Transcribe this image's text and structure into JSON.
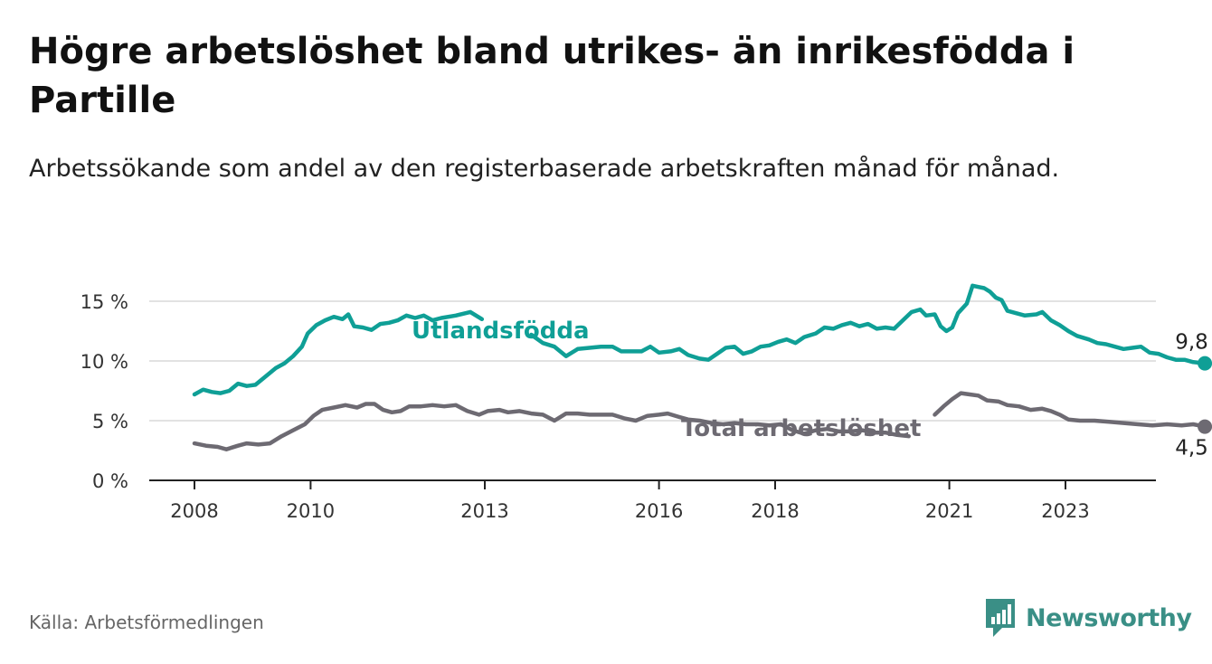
{
  "title": "Högre arbetslöshet bland utrikes- än inrikesfödda i Partille",
  "subtitle": "Arbetssökande som andel av den registerbaserade arbetskraften månad för månad.",
  "source": "Källa: Arbetsförmedlingen",
  "brand": "Newsworthy",
  "colors": {
    "foreign": "#0f9f96",
    "total": "#6d6a72",
    "brand": "#3a8f86"
  },
  "chart_data": {
    "type": "line",
    "title": "Högre arbetslöshet bland utrikes- än inrikesfödda i Partille",
    "xlabel": "",
    "ylabel": "",
    "ylim": [
      0,
      15
    ],
    "xlim": [
      2008,
      2024
    ],
    "grid": true,
    "y_ticks": [
      0,
      5,
      10,
      15
    ],
    "y_tick_labels": [
      "0 %",
      "5 %",
      "10 %",
      "15 %"
    ],
    "x_ticks": [
      2008,
      2010,
      2013,
      2016,
      2018,
      2021,
      2023
    ],
    "x_tick_labels": [
      "2008",
      "2010",
      "2013",
      "2016",
      "2018",
      "2021",
      "2023"
    ],
    "series": [
      {
        "name": "Utlandsfödda",
        "color": "#0f9f96",
        "end_label": "9,8 %",
        "points": [
          [
            2008.0,
            7.2
          ],
          [
            2008.15,
            7.6
          ],
          [
            2008.3,
            7.4
          ],
          [
            2008.45,
            7.3
          ],
          [
            2008.6,
            7.5
          ],
          [
            2008.75,
            8.1
          ],
          [
            2008.9,
            7.9
          ],
          [
            2009.05,
            8.0
          ],
          [
            2009.2,
            8.6
          ],
          [
            2009.4,
            9.4
          ],
          [
            2009.55,
            9.8
          ],
          [
            2009.7,
            10.4
          ],
          [
            2009.85,
            11.2
          ],
          [
            2009.95,
            12.3
          ],
          [
            2010.1,
            13.0
          ],
          [
            2010.25,
            13.4
          ],
          [
            2010.4,
            13.7
          ],
          [
            2010.55,
            13.5
          ],
          [
            2010.65,
            13.9
          ],
          [
            2010.75,
            12.9
          ],
          [
            2010.9,
            12.8
          ],
          [
            2011.05,
            12.6
          ],
          [
            2011.2,
            13.1
          ],
          [
            2011.35,
            13.2
          ],
          [
            2011.5,
            13.4
          ],
          [
            2011.65,
            13.8
          ],
          [
            2011.8,
            13.6
          ],
          [
            2011.95,
            13.8
          ],
          [
            2012.1,
            13.4
          ],
          [
            2012.25,
            13.6
          ],
          [
            2012.5,
            13.8
          ],
          [
            2012.75,
            14.1
          ],
          [
            2012.95,
            13.5
          ],
          [
            2013.8,
            12.2
          ],
          [
            2014.0,
            11.5
          ],
          [
            2014.2,
            11.2
          ],
          [
            2014.4,
            10.4
          ],
          [
            2014.6,
            11.0
          ],
          [
            2014.8,
            11.1
          ],
          [
            2015.0,
            11.2
          ],
          [
            2015.2,
            11.2
          ],
          [
            2015.35,
            10.8
          ],
          [
            2015.5,
            10.8
          ],
          [
            2015.7,
            10.8
          ],
          [
            2015.85,
            11.2
          ],
          [
            2016.0,
            10.7
          ],
          [
            2016.2,
            10.8
          ],
          [
            2016.35,
            11.0
          ],
          [
            2016.5,
            10.5
          ],
          [
            2016.7,
            10.2
          ],
          [
            2016.85,
            10.1
          ],
          [
            2017.0,
            10.6
          ],
          [
            2017.15,
            11.1
          ],
          [
            2017.3,
            11.2
          ],
          [
            2017.45,
            10.6
          ],
          [
            2017.6,
            10.8
          ],
          [
            2017.75,
            11.2
          ],
          [
            2017.9,
            11.3
          ],
          [
            2018.05,
            11.6
          ],
          [
            2018.2,
            11.8
          ],
          [
            2018.35,
            11.5
          ],
          [
            2018.5,
            12.0
          ],
          [
            2018.7,
            12.3
          ],
          [
            2018.85,
            12.8
          ],
          [
            2019.0,
            12.7
          ],
          [
            2019.15,
            13.0
          ],
          [
            2019.3,
            13.2
          ],
          [
            2019.45,
            12.9
          ],
          [
            2019.6,
            13.1
          ],
          [
            2019.75,
            12.7
          ],
          [
            2019.9,
            12.8
          ],
          [
            2020.05,
            12.7
          ],
          [
            2020.2,
            13.4
          ],
          [
            2020.35,
            14.1
          ],
          [
            2020.5,
            14.3
          ],
          [
            2020.6,
            13.8
          ],
          [
            2020.75,
            13.9
          ],
          [
            2020.85,
            12.9
          ],
          [
            2020.95,
            12.5
          ],
          [
            2021.05,
            12.8
          ],
          [
            2021.15,
            14.0
          ],
          [
            2021.3,
            14.8
          ],
          [
            2021.4,
            16.3
          ],
          [
            2021.5,
            16.2
          ],
          [
            2021.6,
            16.1
          ],
          [
            2021.7,
            15.8
          ],
          [
            2021.8,
            15.3
          ],
          [
            2021.9,
            15.1
          ],
          [
            2022.0,
            14.2
          ],
          [
            2022.15,
            14.0
          ],
          [
            2022.3,
            13.8
          ],
          [
            2022.5,
            13.9
          ],
          [
            2022.6,
            14.1
          ],
          [
            2022.75,
            13.4
          ],
          [
            2022.9,
            13.0
          ],
          [
            2023.05,
            12.5
          ],
          [
            2023.2,
            12.1
          ],
          [
            2023.4,
            11.8
          ],
          [
            2023.55,
            11.5
          ],
          [
            2023.7,
            11.4
          ],
          [
            2023.85,
            11.2
          ],
          [
            2024.0,
            11.0
          ],
          [
            2024.15,
            11.1
          ],
          [
            2024.3,
            11.2
          ],
          [
            2024.45,
            10.7
          ],
          [
            2024.6,
            10.6
          ],
          [
            2024.75,
            10.3
          ],
          [
            2024.9,
            10.1
          ],
          [
            2025.05,
            10.1
          ],
          [
            2025.2,
            9.9
          ],
          [
            2025.4,
            9.8
          ]
        ]
      },
      {
        "name": "Total arbetslöshet",
        "color": "#6d6a72",
        "end_label": "4,5 %",
        "points": [
          [
            2008.0,
            3.1
          ],
          [
            2008.2,
            2.9
          ],
          [
            2008.4,
            2.8
          ],
          [
            2008.55,
            2.6
          ],
          [
            2008.75,
            2.9
          ],
          [
            2008.9,
            3.1
          ],
          [
            2009.1,
            3.0
          ],
          [
            2009.3,
            3.1
          ],
          [
            2009.5,
            3.7
          ],
          [
            2009.7,
            4.2
          ],
          [
            2009.9,
            4.7
          ],
          [
            2010.05,
            5.4
          ],
          [
            2010.2,
            5.9
          ],
          [
            2010.4,
            6.1
          ],
          [
            2010.6,
            6.3
          ],
          [
            2010.8,
            6.1
          ],
          [
            2010.95,
            6.4
          ],
          [
            2011.1,
            6.4
          ],
          [
            2011.25,
            5.9
          ],
          [
            2011.4,
            5.7
          ],
          [
            2011.55,
            5.8
          ],
          [
            2011.7,
            6.2
          ],
          [
            2011.9,
            6.2
          ],
          [
            2012.1,
            6.3
          ],
          [
            2012.3,
            6.2
          ],
          [
            2012.5,
            6.3
          ],
          [
            2012.7,
            5.8
          ],
          [
            2012.9,
            5.5
          ],
          [
            2013.05,
            5.8
          ],
          [
            2013.25,
            5.9
          ],
          [
            2013.4,
            5.7
          ],
          [
            2013.6,
            5.8
          ],
          [
            2013.8,
            5.6
          ],
          [
            2014.0,
            5.5
          ],
          [
            2014.2,
            5.0
          ],
          [
            2014.4,
            5.6
          ],
          [
            2014.6,
            5.6
          ],
          [
            2014.8,
            5.5
          ],
          [
            2015.0,
            5.5
          ],
          [
            2015.2,
            5.5
          ],
          [
            2015.4,
            5.2
          ],
          [
            2015.6,
            5.0
          ],
          [
            2015.8,
            5.4
          ],
          [
            2016.0,
            5.5
          ],
          [
            2016.15,
            5.6
          ],
          [
            2016.35,
            5.3
          ],
          [
            2016.5,
            5.1
          ],
          [
            2016.7,
            5.0
          ],
          [
            2016.9,
            4.8
          ],
          [
            2017.1,
            4.7
          ],
          [
            2017.3,
            4.8
          ],
          [
            2017.5,
            4.7
          ],
          [
            2017.7,
            4.7
          ],
          [
            2017.9,
            4.6
          ],
          [
            2018.1,
            4.7
          ],
          [
            2018.3,
            4.2
          ],
          [
            2018.5,
            3.9
          ],
          [
            2018.7,
            4.2
          ],
          [
            2018.9,
            4.3
          ],
          [
            2019.1,
            4.1
          ],
          [
            2019.3,
            4.1
          ],
          [
            2019.5,
            4.2
          ],
          [
            2019.7,
            4.0
          ],
          [
            2019.9,
            4.0
          ],
          [
            2020.1,
            3.8
          ],
          [
            2020.3,
            3.7
          ],
          [
            2020.75,
            5.5
          ],
          [
            2020.9,
            6.2
          ],
          [
            2021.05,
            6.8
          ],
          [
            2021.2,
            7.3
          ],
          [
            2021.35,
            7.2
          ],
          [
            2021.5,
            7.1
          ],
          [
            2021.65,
            6.7
          ],
          [
            2021.85,
            6.6
          ],
          [
            2022.0,
            6.3
          ],
          [
            2022.2,
            6.2
          ],
          [
            2022.4,
            5.9
          ],
          [
            2022.6,
            6.0
          ],
          [
            2022.75,
            5.8
          ],
          [
            2022.9,
            5.5
          ],
          [
            2023.05,
            5.1
          ],
          [
            2023.25,
            5.0
          ],
          [
            2023.5,
            5.0
          ],
          [
            2023.75,
            4.9
          ],
          [
            2024.0,
            4.8
          ],
          [
            2024.25,
            4.7
          ],
          [
            2024.5,
            4.6
          ],
          [
            2024.75,
            4.7
          ],
          [
            2025.0,
            4.6
          ],
          [
            2025.2,
            4.7
          ],
          [
            2025.4,
            4.5
          ]
        ]
      }
    ],
    "annotations": [
      {
        "text": "Utlandsfödda",
        "series": "Utlandsfödda"
      },
      {
        "text": "Total arbetslöshet",
        "series": "Total arbetslöshet"
      }
    ]
  }
}
